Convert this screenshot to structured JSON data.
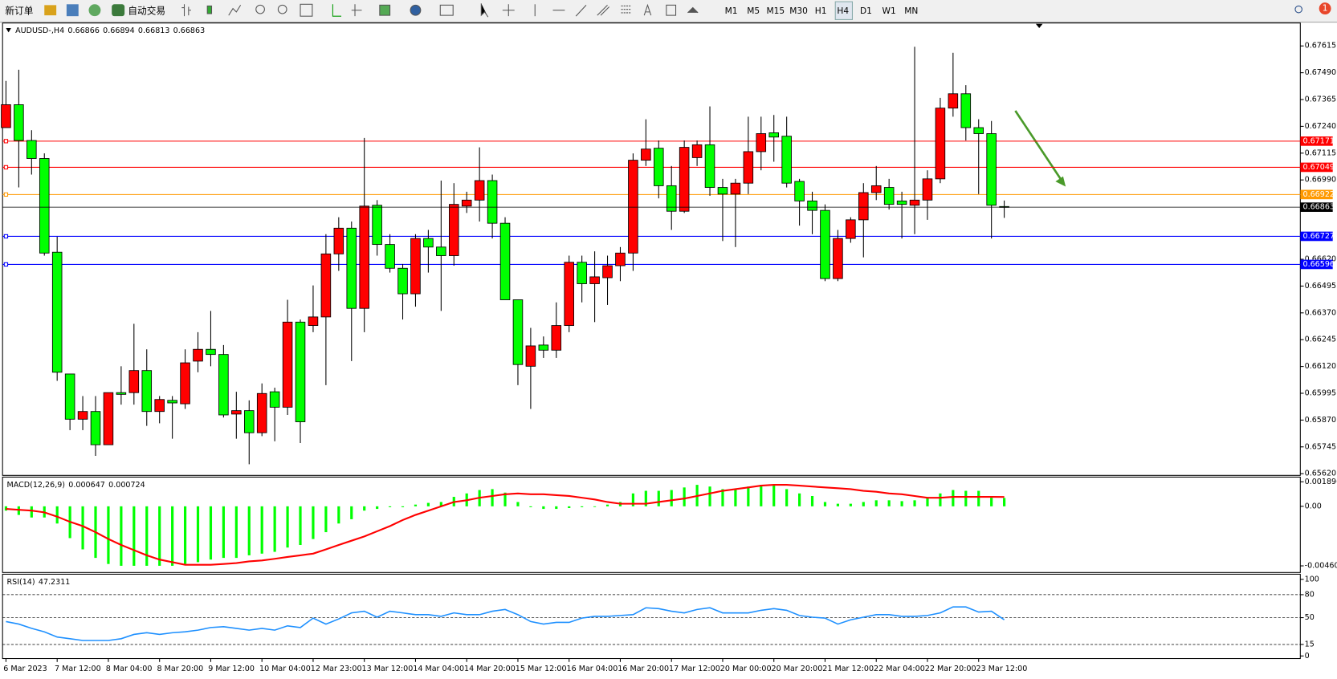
{
  "toolbar": {
    "new_order": "新订单",
    "auto_trading": "自动交易",
    "timeframes": [
      "M1",
      "M5",
      "M15",
      "M30",
      "H1",
      "H4",
      "D1",
      "W1",
      "MN"
    ],
    "notifications": "1"
  },
  "chart_data": [
    {
      "type": "candlestick",
      "title": "AUDUSD-,H4",
      "up_color": "#ff0000",
      "down_color": "#00ff00",
      "open": [
        0.67234,
        0.67341,
        0.67174,
        0.6709,
        0.66653,
        0.66085,
        0.65874,
        0.6591,
        0.65755,
        0.65998,
        0.65998,
        0.66101,
        0.6591,
        0.65962,
        0.65946,
        0.66145,
        0.662,
        0.66176,
        0.65898,
        0.65914,
        0.65811,
        0.66002,
        0.6593,
        0.66327,
        0.66311,
        0.66351,
        0.66645,
        0.66765,
        0.66391,
        0.66872,
        0.66689,
        0.66578,
        0.66459,
        0.66717,
        0.66677,
        0.66637,
        0.66868,
        0.66896,
        0.66987,
        0.66788,
        0.66431,
        0.66121,
        0.6622,
        0.66196,
        0.66311,
        0.66606,
        0.66506,
        0.66534,
        0.6659,
        0.66649,
        0.67082,
        0.67138,
        0.66963,
        0.66844,
        0.67094,
        0.67154,
        0.66955,
        0.66924,
        0.66975,
        0.67122,
        0.6721,
        0.67194,
        0.66983,
        0.66892,
        0.66848,
        0.6653,
        0.66717,
        0.66804,
        0.66931,
        0.66955,
        0.66892,
        0.66872,
        0.66896,
        0.66995,
        0.67325,
        0.67392,
        0.67234,
        0.67206,
        0.66866
      ],
      "high": [
        0.67452,
        0.67504,
        0.67222,
        0.67114,
        0.66725,
        0.66085,
        0.65982,
        0.65982,
        0.65998,
        0.66121,
        0.66319,
        0.662,
        0.65982,
        0.65982,
        0.662,
        0.6628,
        0.66379,
        0.6622,
        0.66002,
        0.65962,
        0.66041,
        0.66021,
        0.66431,
        0.66339,
        0.66498,
        0.66737,
        0.66816,
        0.66796,
        0.67186,
        0.66896,
        0.66737,
        0.66598,
        0.66737,
        0.66757,
        0.66987,
        0.66975,
        0.66935,
        0.67142,
        0.67015,
        0.66816,
        0.66431,
        0.663,
        0.6626,
        0.66419,
        0.66637,
        0.66637,
        0.66657,
        0.66637,
        0.66677,
        0.67114,
        0.67273,
        0.67174,
        0.67055,
        0.67174,
        0.67174,
        0.67333,
        0.66995,
        0.66995,
        0.67285,
        0.67285,
        0.67293,
        0.67285,
        0.66995,
        0.66935,
        0.66876,
        0.66757,
        0.66816,
        0.66975,
        0.67055,
        0.66995,
        0.66935,
        0.67611,
        0.67035,
        0.67373,
        0.67583,
        0.67432,
        0.67273,
        0.67265,
        0.66894
      ],
      "low": [
        0.67234,
        0.66955,
        0.67015,
        0.66637,
        0.66053,
        0.65823,
        0.65823,
        0.65703,
        0.65755,
        0.65942,
        0.65942,
        0.65843,
        0.65855,
        0.65783,
        0.65922,
        0.66093,
        0.66121,
        0.65882,
        0.65783,
        0.65664,
        0.65795,
        0.65771,
        0.65894,
        0.65763,
        0.6628,
        0.66033,
        0.66566,
        0.66145,
        0.6628,
        0.66637,
        0.66558,
        0.66339,
        0.66399,
        0.66558,
        0.66379,
        0.6659,
        0.66836,
        0.66796,
        0.66717,
        0.66431,
        0.66033,
        0.65922,
        0.6616,
        0.6616,
        0.6628,
        0.66419,
        0.66327,
        0.66407,
        0.66518,
        0.66566,
        0.67055,
        0.66904,
        0.66757,
        0.66836,
        0.67055,
        0.66916,
        0.66705,
        0.66677,
        0.66924,
        0.67035,
        0.67075,
        0.66955,
        0.66777,
        0.66737,
        0.66518,
        0.66518,
        0.66697,
        0.66629,
        0.66896,
        0.66852,
        0.66717,
        0.66737,
        0.66804,
        0.66975,
        0.67285,
        0.67174,
        0.66924,
        0.66717,
        0.66813
      ],
      "close": [
        0.67341,
        0.67174,
        0.6709,
        0.66649,
        0.66093,
        0.65874,
        0.6591,
        0.65755,
        0.65998,
        0.6599,
        0.66101,
        0.6591,
        0.65966,
        0.6595,
        0.66137,
        0.662,
        0.66176,
        0.65894,
        0.65914,
        0.65811,
        0.65994,
        0.6593,
        0.66327,
        0.65862,
        0.66351,
        0.66645,
        0.66765,
        0.66391,
        0.66868,
        0.66689,
        0.66578,
        0.66459,
        0.66717,
        0.66677,
        0.66637,
        0.66876,
        0.66896,
        0.66987,
        0.66788,
        0.66431,
        0.66129,
        0.66216,
        0.66196,
        0.66311,
        0.66606,
        0.66506,
        0.66538,
        0.6659,
        0.66649,
        0.67082,
        0.67134,
        0.66963,
        0.66844,
        0.67142,
        0.67154,
        0.66955,
        0.66924,
        0.66975,
        0.67122,
        0.67206,
        0.6719,
        0.66975,
        0.66892,
        0.66848,
        0.6653,
        0.66717,
        0.66804,
        0.66931,
        0.66963,
        0.66876,
        0.66876,
        0.66896,
        0.66995,
        0.67325,
        0.67392,
        0.67234,
        0.67206,
        0.66872,
        0.66863
      ],
      "ylim": [
        0.65612,
        0.67718
      ],
      "yticks": [
        0.67615,
        {
          "value": 0.6749,
          "label": "0.67490"
        },
        0.67365,
        {
          "value": 0.6724,
          "label": "0.67240"
        },
        0.67115,
        {
          "value": 0.6699,
          "label": "0.66990"
        },
        {
          "value": 0.6662,
          "label": "0.66620"
        },
        0.66495,
        {
          "value": 0.6637,
          "label": "0.66370"
        },
        0.66245,
        {
          "value": 0.6612,
          "label": "0.66120"
        },
        0.65995,
        {
          "value": 0.6587,
          "label": "0.65870"
        },
        0.65745,
        {
          "value": 0.6562,
          "label": "0.65620"
        }
      ],
      "levels": [
        {
          "value": 0.67171,
          "color": "#ff0000"
        },
        {
          "value": 0.67049,
          "color": "#ff0000"
        },
        {
          "value": 0.66922,
          "color": "#ff9900"
        },
        {
          "value": 0.66727,
          "color": "#0000ff"
        },
        {
          "value": 0.66596,
          "color": "#0000ff"
        }
      ],
      "time_labels": [
        "6 Mar 2023",
        "7 Mar 12:00",
        "8 Mar 04:00",
        "8 Mar 20:00",
        "9 Mar 12:00",
        "10 Mar 04:00",
        "12 Mar 23:00",
        "13 Mar 12:00",
        "14 Mar 04:00",
        "14 Mar 20:00",
        "15 Mar 12:00",
        "16 Mar 04:00",
        "16 Mar 20:00",
        "17 Mar 12:00",
        "20 Mar 00:00",
        "20 Mar 20:00",
        "21 Mar 12:00",
        "22 Mar 04:00",
        "22 Mar 20:00",
        "23 Mar 12:00"
      ]
    },
    {
      "type": "macd",
      "title": "MACD(12,26,9)",
      "hist_color": "#00ff00",
      "signal_color": "#ff0000",
      "histogram": [
        -0.000333,
        -0.000665,
        -0.000865,
        -0.000865,
        -0.00133,
        -0.00246,
        -0.00333,
        -0.00399,
        -0.00446,
        -0.0046,
        -0.0046,
        -0.0046,
        -0.0046,
        -0.0046,
        -0.00446,
        -0.00432,
        -0.00412,
        -0.00399,
        -0.00399,
        -0.00379,
        -0.00366,
        -0.00352,
        -0.00319,
        -0.00299,
        -0.00253,
        -0.002,
        -0.00133,
        -0.000998,
        -0.000333,
        -0.0002,
        -6.7e-05,
        -6.7e-05,
        0.000133,
        0.000266,
        0.000333,
        0.000732,
        0.000998,
        0.00126,
        0.00133,
        0.00106,
        0.000333,
        -6.7e-05,
        -0.0002,
        -0.0002,
        -0.000133,
        -6.7e-05,
        0,
        0.000133,
        0.000333,
        0.000998,
        0.0012,
        0.0012,
        0.00126,
        0.00146,
        0.00166,
        0.00153,
        0.00133,
        0.00133,
        0.00153,
        0.00166,
        0.00166,
        0.00133,
        0.000998,
        0.000798,
        0.000333,
        0.0002,
        0.0002,
        0.000333,
        0.000466,
        0.000466,
        0.0004,
        0.000466,
        0.000665,
        0.000998,
        0.00126,
        0.0012,
        0.0012,
        0.000665,
        0.000647
      ],
      "signal": [
        -0.0002,
        -0.000266,
        -0.000333,
        -0.000466,
        -0.000798,
        -0.0012,
        -0.00153,
        -0.002,
        -0.00253,
        -0.00299,
        -0.00339,
        -0.00379,
        -0.00412,
        -0.00432,
        -0.00452,
        -0.00452,
        -0.00452,
        -0.00446,
        -0.00439,
        -0.00426,
        -0.00419,
        -0.00406,
        -0.00392,
        -0.00379,
        -0.00366,
        -0.00333,
        -0.00299,
        -0.00266,
        -0.00233,
        -0.00193,
        -0.00153,
        -0.00106,
        -0.000665,
        -0.000333,
        0,
        0.000333,
        0.000466,
        0.000665,
        0.000798,
        0.000931,
        0.000998,
        0.000931,
        0.000931,
        0.000865,
        0.000798,
        0.000665,
        0.000532,
        0.000333,
        0.0002,
        0.0002,
        0.0002,
        0.000333,
        0.000466,
        0.000599,
        0.000798,
        0.000998,
        0.0012,
        0.00133,
        0.00146,
        0.0016,
        0.00166,
        0.00166,
        0.0016,
        0.00153,
        0.00146,
        0.0014,
        0.00133,
        0.0012,
        0.00113,
        0.000998,
        0.000931,
        0.000798,
        0.000665,
        0.000665,
        0.000731,
        0.000731,
        0.000731,
        0.000731,
        0.000724
      ],
      "ylim": [
        -0.00512,
        0.002195
      ],
      "yticks": [
        0.001896,
        {
          "value": 0,
          "label": "0.00"
        },
        -0.004606
      ]
    },
    {
      "type": "line",
      "title": "RSI(14)",
      "color": "#1e90ff",
      "values": [
        44.9,
        41.6,
        36,
        31.5,
        24.7,
        22.5,
        20.2,
        20.2,
        20.2,
        22.5,
        28.1,
        30.3,
        28.1,
        30.3,
        31.5,
        33.7,
        37.1,
        38.2,
        36,
        33.7,
        36,
        33.7,
        39.3,
        37.1,
        49.4,
        41.6,
        48.3,
        56.2,
        58.4,
        50.6,
        58.4,
        56.2,
        53.9,
        53.9,
        51.7,
        56.2,
        53.9,
        53.9,
        58.4,
        60.7,
        53.9,
        44.9,
        41.6,
        43.8,
        43.8,
        49.4,
        51.7,
        51.7,
        52.8,
        53.9,
        62.9,
        61.8,
        58.4,
        56.2,
        60.7,
        62.9,
        56.2,
        56.2,
        56.2,
        59.6,
        61.8,
        59.6,
        52.8,
        50.6,
        49.4,
        41.6,
        47.2,
        50.6,
        53.9,
        53.9,
        51.7,
        51.7,
        52.8,
        56.2,
        64,
        64,
        57.3,
        58.4,
        47.2311
      ],
      "ylim": [
        -3.4,
        105.6
      ],
      "yticks": [
        100,
        80,
        50,
        15,
        0
      ],
      "levels": [
        80,
        50,
        15
      ]
    }
  ]
}
